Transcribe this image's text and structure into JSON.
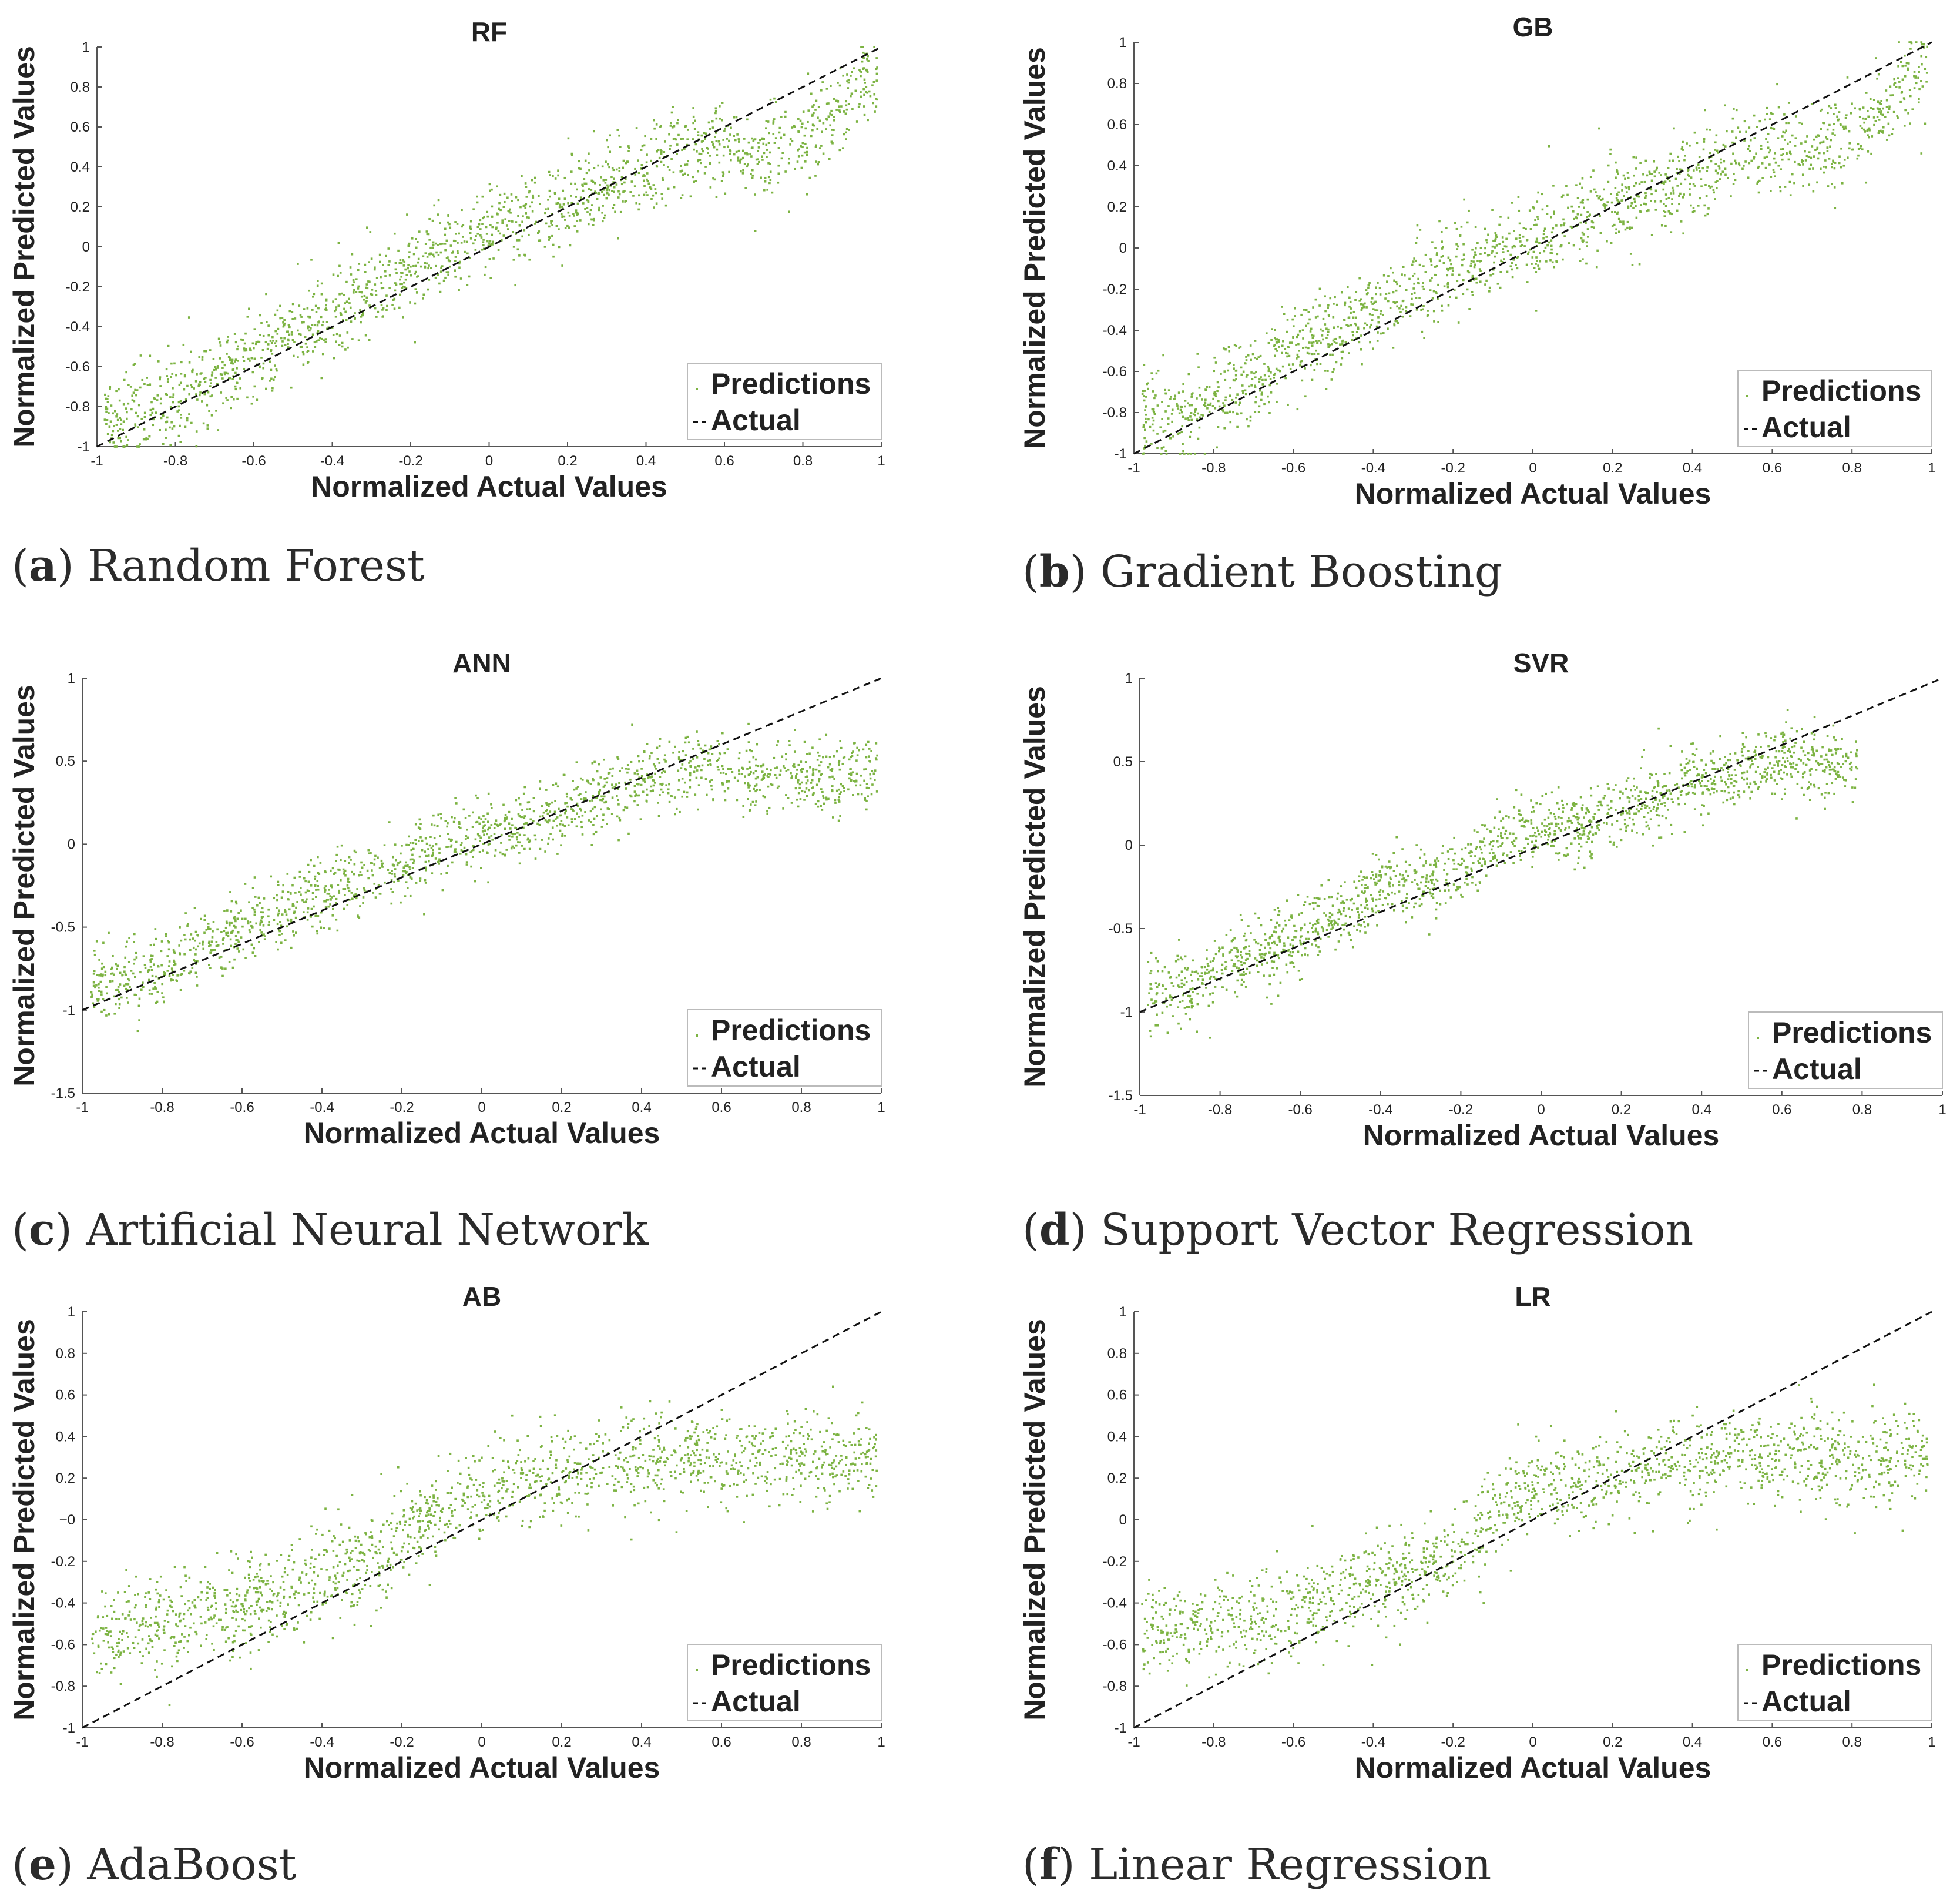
{
  "colors": {
    "points": "#7cb342",
    "line": "#111111",
    "axis": "#555555",
    "legend_border": "#bbbbbb"
  },
  "chart_data": [
    {
      "id": "rf",
      "type": "scatter",
      "title": "RF",
      "xlabel": "Normalized Actual Values",
      "ylabel": "Normalized Predicted Values",
      "xlim": [
        -1,
        1
      ],
      "ylim": [
        -1,
        1
      ],
      "xticks": [
        -1,
        -0.8,
        -0.6,
        -0.4,
        -0.2,
        0,
        0.2,
        0.4,
        0.6,
        0.8,
        1
      ],
      "xtick_labels": [
        "-1",
        "-0.8",
        "-0.6",
        "-0.4",
        "-0.2",
        "0",
        "0.2",
        "0.4",
        "0.6",
        "0.8",
        "1"
      ],
      "yticks": [
        -1,
        -0.8,
        -0.6,
        -0.4,
        -0.2,
        0,
        0.2,
        0.4,
        0.6,
        0.8,
        1
      ],
      "ytick_labels": [
        "-1",
        "-0.8",
        "-0.6",
        "-0.4",
        "-0.2",
        "0",
        "0.2",
        "0.4",
        "0.6",
        "0.8",
        "1"
      ],
      "series": [
        {
          "name": "Predictions",
          "kind": "points",
          "x": [
            -0.95,
            -0.9,
            -0.85,
            -0.8,
            -0.7,
            -0.6,
            -0.5,
            -0.4,
            -0.3,
            -0.2,
            -0.1,
            0,
            0.1,
            0.2,
            0.3,
            0.4,
            0.5,
            0.6,
            0.7,
            0.8,
            0.9,
            0.95
          ],
          "y": [
            -0.85,
            -0.82,
            -0.78,
            -0.75,
            -0.65,
            -0.55,
            -0.45,
            -0.32,
            -0.22,
            -0.12,
            0.0,
            0.08,
            0.15,
            0.22,
            0.3,
            0.38,
            0.48,
            0.52,
            0.45,
            0.55,
            0.7,
            0.85
          ]
        },
        {
          "name": "Actual",
          "kind": "line",
          "x": [
            -1,
            1
          ],
          "y": [
            -1,
            1
          ]
        }
      ],
      "legend": [
        "Predictions",
        "Actual"
      ],
      "caption_letter": "a",
      "caption_text": "Random Forest"
    },
    {
      "id": "gb",
      "type": "scatter",
      "title": "GB",
      "xlabel": "Normalized Actual Values",
      "ylabel": "Normalized Predicted Values",
      "xlim": [
        -1,
        1
      ],
      "ylim": [
        -1,
        1
      ],
      "xticks": [
        -1,
        -0.8,
        -0.6,
        -0.4,
        -0.2,
        0,
        0.2,
        0.4,
        0.6,
        0.8,
        1
      ],
      "xtick_labels": [
        "-1",
        "-0.8",
        "-0.6",
        "-0.4",
        "-0.2",
        "0",
        "0.2",
        "0.4",
        "0.6",
        "0.8",
        "1"
      ],
      "yticks": [
        -1,
        -0.8,
        -0.6,
        -0.4,
        -0.2,
        0,
        0.2,
        0.4,
        0.6,
        0.8,
        1
      ],
      "ytick_labels": [
        "-1",
        "-0.8",
        "-0.6",
        "-0.4",
        "-0.2",
        "0",
        "0.2",
        "0.4",
        "0.6",
        "0.8",
        "1"
      ],
      "series": [
        {
          "name": "Predictions",
          "kind": "points",
          "x": [
            -0.95,
            -0.9,
            -0.85,
            -0.8,
            -0.7,
            -0.6,
            -0.5,
            -0.4,
            -0.3,
            -0.2,
            -0.1,
            0,
            0.1,
            0.2,
            0.3,
            0.4,
            0.5,
            0.6,
            0.7,
            0.8,
            0.9,
            0.95
          ],
          "y": [
            -0.82,
            -0.8,
            -0.78,
            -0.75,
            -0.62,
            -0.5,
            -0.42,
            -0.3,
            -0.2,
            -0.1,
            0.0,
            0.05,
            0.12,
            0.2,
            0.28,
            0.36,
            0.45,
            0.5,
            0.48,
            0.55,
            0.7,
            0.85
          ]
        },
        {
          "name": "Actual",
          "kind": "line",
          "x": [
            -1,
            1
          ],
          "y": [
            -1,
            1
          ]
        }
      ],
      "legend": [
        "Predictions",
        "Actual"
      ],
      "caption_letter": "b",
      "caption_text": "Gradient Boosting"
    },
    {
      "id": "ann",
      "type": "scatter",
      "title": "ANN",
      "xlabel": "Normalized Actual Values",
      "ylabel": "Normalized Predicted Values",
      "xlim": [
        -1,
        1
      ],
      "ylim": [
        -1.5,
        1
      ],
      "xticks": [
        -1,
        -0.8,
        -0.6,
        -0.4,
        -0.2,
        0,
        0.2,
        0.4,
        0.6,
        0.8,
        1
      ],
      "xtick_labels": [
        "-1",
        "-0.8",
        "-0.6",
        "-0.4",
        "-0.2",
        "0",
        "0.2",
        "0.4",
        "0.6",
        "0.8",
        "1"
      ],
      "yticks": [
        -1.5,
        -1,
        -0.5,
        0,
        0.5,
        1
      ],
      "ytick_labels": [
        "-1.5",
        "-1",
        "-0.5",
        "0",
        "0.5",
        "1"
      ],
      "series": [
        {
          "name": "Predictions",
          "kind": "points",
          "x": [
            -0.95,
            -0.9,
            -0.85,
            -0.8,
            -0.7,
            -0.6,
            -0.5,
            -0.4,
            -0.3,
            -0.2,
            -0.1,
            0,
            0.1,
            0.2,
            0.3,
            0.4,
            0.5,
            0.6,
            0.7,
            0.8,
            0.9,
            0.95
          ],
          "y": [
            -0.85,
            -0.82,
            -0.8,
            -0.75,
            -0.6,
            -0.5,
            -0.4,
            -0.3,
            -0.2,
            -0.12,
            0.0,
            0.05,
            0.1,
            0.2,
            0.3,
            0.35,
            0.45,
            0.45,
            0.4,
            0.4,
            0.4,
            0.45
          ]
        },
        {
          "name": "Actual",
          "kind": "line",
          "x": [
            -1,
            1
          ],
          "y": [
            -1,
            1
          ]
        }
      ],
      "legend": [
        "Predictions",
        "Actual"
      ],
      "caption_letter": "c",
      "caption_text": "Artificial Neural Network"
    },
    {
      "id": "svr",
      "type": "scatter",
      "title": "SVR",
      "xlabel": "Normalized Actual Values",
      "ylabel": "Normalized Predicted Values",
      "xlim": [
        -1,
        1
      ],
      "ylim": [
        -1.5,
        1
      ],
      "xticks": [
        -1,
        -0.8,
        -0.6,
        -0.4,
        -0.2,
        0,
        0.2,
        0.4,
        0.6,
        0.8,
        1
      ],
      "xtick_labels": [
        "-1",
        "-0.8",
        "-0.6",
        "-0.4",
        "-0.2",
        "0",
        "0.2",
        "0.4",
        "0.6",
        "0.8",
        "1"
      ],
      "yticks": [
        -1.5,
        -1,
        -0.5,
        0,
        0.5,
        1
      ],
      "ytick_labels": [
        "-1.5",
        "-1",
        "-0.5",
        "0",
        "0.5",
        "1"
      ],
      "series": [
        {
          "name": "Predictions",
          "kind": "points",
          "x": [
            -0.95,
            -0.9,
            -0.85,
            -0.8,
            -0.7,
            -0.6,
            -0.5,
            -0.4,
            -0.3,
            -0.2,
            -0.1,
            0,
            0.1,
            0.2,
            0.3,
            0.4,
            0.5,
            0.6,
            0.7,
            0.75
          ],
          "y": [
            -0.88,
            -0.85,
            -0.8,
            -0.72,
            -0.62,
            -0.55,
            -0.4,
            -0.25,
            -0.2,
            -0.15,
            0.05,
            0.08,
            0.12,
            0.2,
            0.3,
            0.38,
            0.45,
            0.5,
            0.48,
            0.45
          ]
        },
        {
          "name": "Actual",
          "kind": "line",
          "x": [
            -1,
            1
          ],
          "y": [
            -1,
            1
          ]
        }
      ],
      "legend": [
        "Predictions",
        "Actual"
      ],
      "caption_letter": "d",
      "caption_text": "Support Vector Regression"
    },
    {
      "id": "ab",
      "type": "scatter",
      "title": "AB",
      "xlabel": "Normalized Actual Values",
      "ylabel": "Normalized Predicted Values",
      "xlim": [
        -1,
        1
      ],
      "ylim": [
        -1,
        1
      ],
      "xticks": [
        -1,
        -0.8,
        -0.6,
        -0.4,
        -0.2,
        0,
        0.2,
        0.4,
        0.6,
        0.8,
        1
      ],
      "xtick_labels": [
        "-1",
        "-0.8",
        "-0.6",
        "-0.4",
        "-0.2",
        "0",
        "0.2",
        "0.4",
        "0.6",
        "0.8",
        "1"
      ],
      "yticks": [
        -1,
        -0.8,
        -0.6,
        -0.4,
        -0.2,
        0,
        0.2,
        0.4,
        0.6,
        0.8,
        1
      ],
      "ytick_labels": [
        "-1",
        "-0.8",
        "-0.6",
        "-0.4",
        "-0.2",
        "−0",
        "0.2",
        "0.4",
        "0.6",
        "0.8",
        "1"
      ],
      "series": [
        {
          "name": "Predictions",
          "kind": "points",
          "x": [
            -0.95,
            -0.9,
            -0.85,
            -0.8,
            -0.7,
            -0.6,
            -0.5,
            -0.4,
            -0.3,
            -0.2,
            -0.1,
            0,
            0.1,
            0.2,
            0.3,
            0.4,
            0.5,
            0.6,
            0.7,
            0.8,
            0.9,
            0.95
          ],
          "y": [
            -0.55,
            -0.55,
            -0.5,
            -0.5,
            -0.45,
            -0.42,
            -0.35,
            -0.25,
            -0.2,
            -0.1,
            0.05,
            0.15,
            0.2,
            0.22,
            0.25,
            0.28,
            0.3,
            0.3,
            0.3,
            0.3,
            0.3,
            0.3
          ]
        },
        {
          "name": "Actual",
          "kind": "line",
          "x": [
            -1,
            1
          ],
          "y": [
            -1,
            1
          ]
        }
      ],
      "legend": [
        "Predictions",
        "Actual"
      ],
      "caption_letter": "e",
      "caption_text": "AdaBoost"
    },
    {
      "id": "lr",
      "type": "scatter",
      "title": "LR",
      "xlabel": "Normalized Actual Values",
      "ylabel": "Normalized Predicted Values",
      "xlim": [
        -1,
        1
      ],
      "ylim": [
        -1,
        1
      ],
      "xticks": [
        -1,
        -0.8,
        -0.6,
        -0.4,
        -0.2,
        0,
        0.2,
        0.4,
        0.6,
        0.8,
        1
      ],
      "xtick_labels": [
        "-1",
        "-0.8",
        "-0.6",
        "-0.4",
        "-0.2",
        "0",
        "0.2",
        "0.4",
        "0.6",
        "0.8",
        "1"
      ],
      "yticks": [
        -1,
        -0.8,
        -0.6,
        -0.4,
        -0.2,
        0,
        0.2,
        0.4,
        0.6,
        0.8,
        1
      ],
      "ytick_labels": [
        "-1",
        "-0.8",
        "-0.6",
        "-0.4",
        "-0.2",
        "0",
        "0.2",
        "0.4",
        "0.6",
        "0.8",
        "1"
      ],
      "series": [
        {
          "name": "Predictions",
          "kind": "points",
          "x": [
            -0.95,
            -0.9,
            -0.85,
            -0.8,
            -0.7,
            -0.6,
            -0.5,
            -0.4,
            -0.3,
            -0.2,
            -0.1,
            0,
            0.1,
            0.2,
            0.3,
            0.4,
            0.5,
            0.6,
            0.7,
            0.8,
            0.9,
            0.95
          ],
          "y": [
            -0.52,
            -0.52,
            -0.52,
            -0.5,
            -0.48,
            -0.45,
            -0.35,
            -0.3,
            -0.25,
            -0.2,
            0.05,
            0.15,
            0.18,
            0.2,
            0.25,
            0.28,
            0.3,
            0.3,
            0.3,
            0.3,
            0.3,
            0.3
          ]
        },
        {
          "name": "Actual",
          "kind": "line",
          "x": [
            -1,
            1
          ],
          "y": [
            -1,
            1
          ]
        }
      ],
      "legend": [
        "Predictions",
        "Actual"
      ],
      "caption_letter": "f",
      "caption_text": "Linear Regression"
    }
  ]
}
